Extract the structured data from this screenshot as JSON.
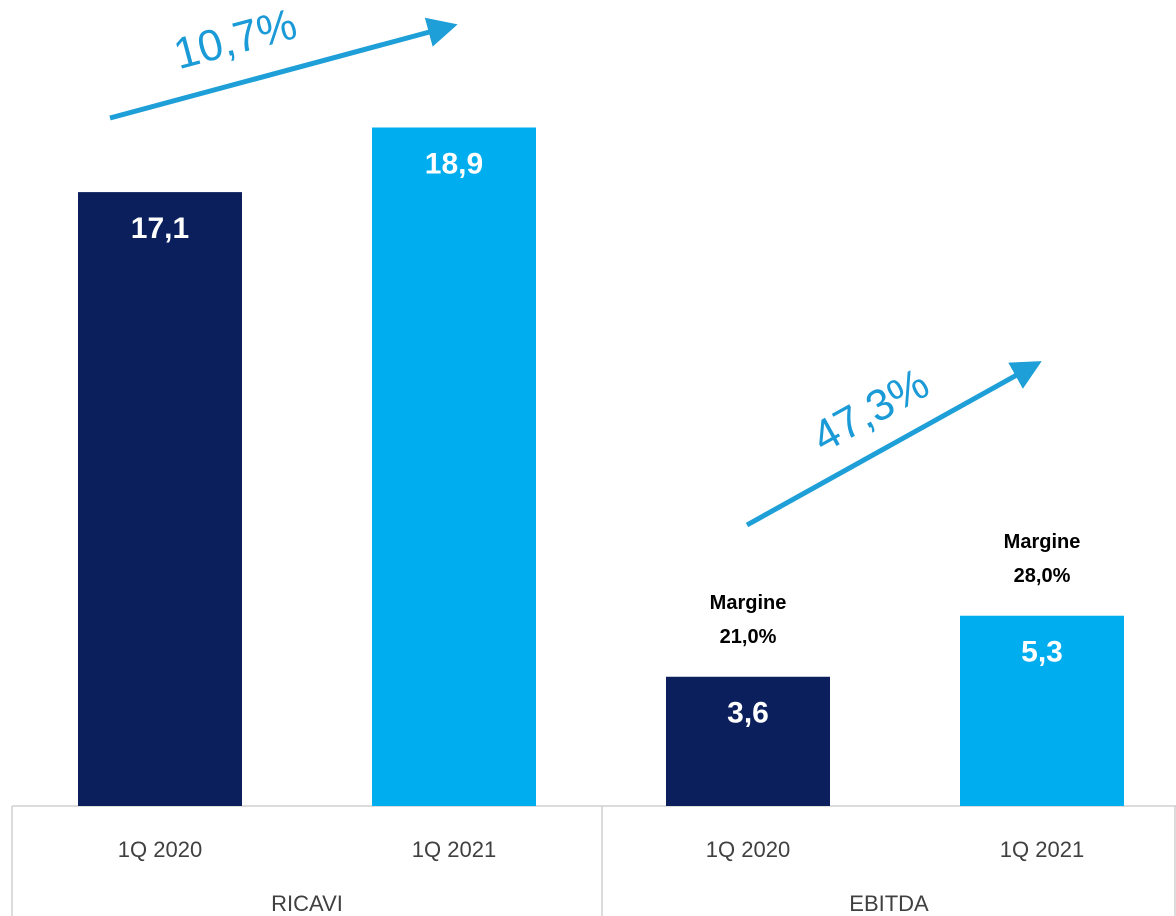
{
  "chart_data": {
    "type": "bar",
    "categories": [
      "1Q 2020",
      "1Q 2021"
    ],
    "colors": [
      "#0a1f5c",
      "#00aeef"
    ],
    "margin_label": "Margine",
    "groups": [
      {
        "name": "RICAVI",
        "values": [
          17.1,
          18.9
        ],
        "value_labels": [
          "17,1",
          "18,9"
        ],
        "growth": "10,7%"
      },
      {
        "name": "EBITDA",
        "values": [
          3.6,
          5.3
        ],
        "value_labels": [
          "3,6",
          "5,3"
        ],
        "growth": "47,3%",
        "margins": [
          "21,0%",
          "28,0%"
        ]
      }
    ]
  }
}
